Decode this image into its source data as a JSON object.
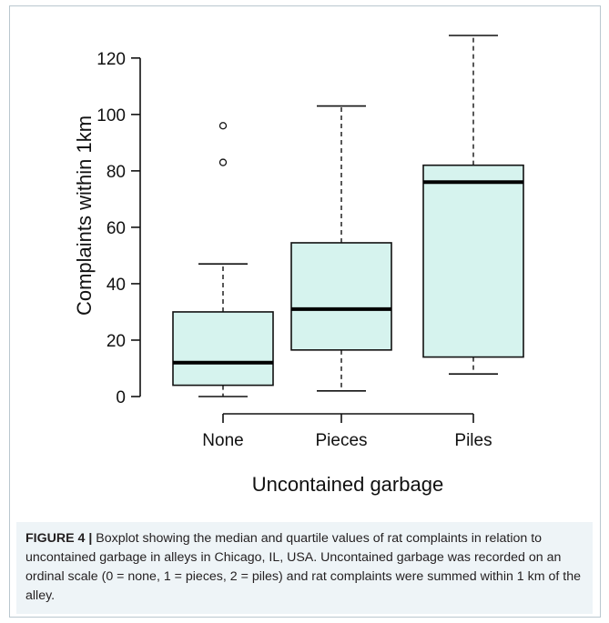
{
  "figure": {
    "label": "FIGURE 4",
    "separator": " | ",
    "caption": "Boxplot showing the median and quartile values of rat complaints in relation to uncontained garbage in alleys in Chicago, IL, USA. Uncontained garbage was recorded on an ordinal scale (0 = none, 1 = pieces, 2 = piles) and rat complaints were summed within 1 km of the alley."
  },
  "chart_data": {
    "type": "boxplot",
    "title": "",
    "xlabel": "Uncontained garbage",
    "ylabel": "Complaints within 1km",
    "categories": [
      "None",
      "Pieces",
      "Piles"
    ],
    "ylim": [
      0,
      128
    ],
    "yticks": [
      0,
      20,
      40,
      60,
      80,
      100,
      120
    ],
    "ytick_labels": [
      "0",
      "20",
      "40",
      "60",
      "80",
      "100",
      "120"
    ],
    "box_fill": "#d6f3ee",
    "grid": false,
    "legend": "none",
    "boxes": [
      {
        "category": "None",
        "whisker_low": 0,
        "q1": 4,
        "median": 12,
        "q3": 30,
        "whisker_high": 47,
        "outliers": [
          83,
          96
        ]
      },
      {
        "category": "Pieces",
        "whisker_low": 2,
        "q1": 16.5,
        "median": 31,
        "q3": 54.5,
        "whisker_high": 103,
        "outliers": []
      },
      {
        "category": "Piles",
        "whisker_low": 8,
        "q1": 14,
        "median": 76,
        "q3": 82,
        "whisker_high": 128,
        "outliers": []
      }
    ]
  }
}
